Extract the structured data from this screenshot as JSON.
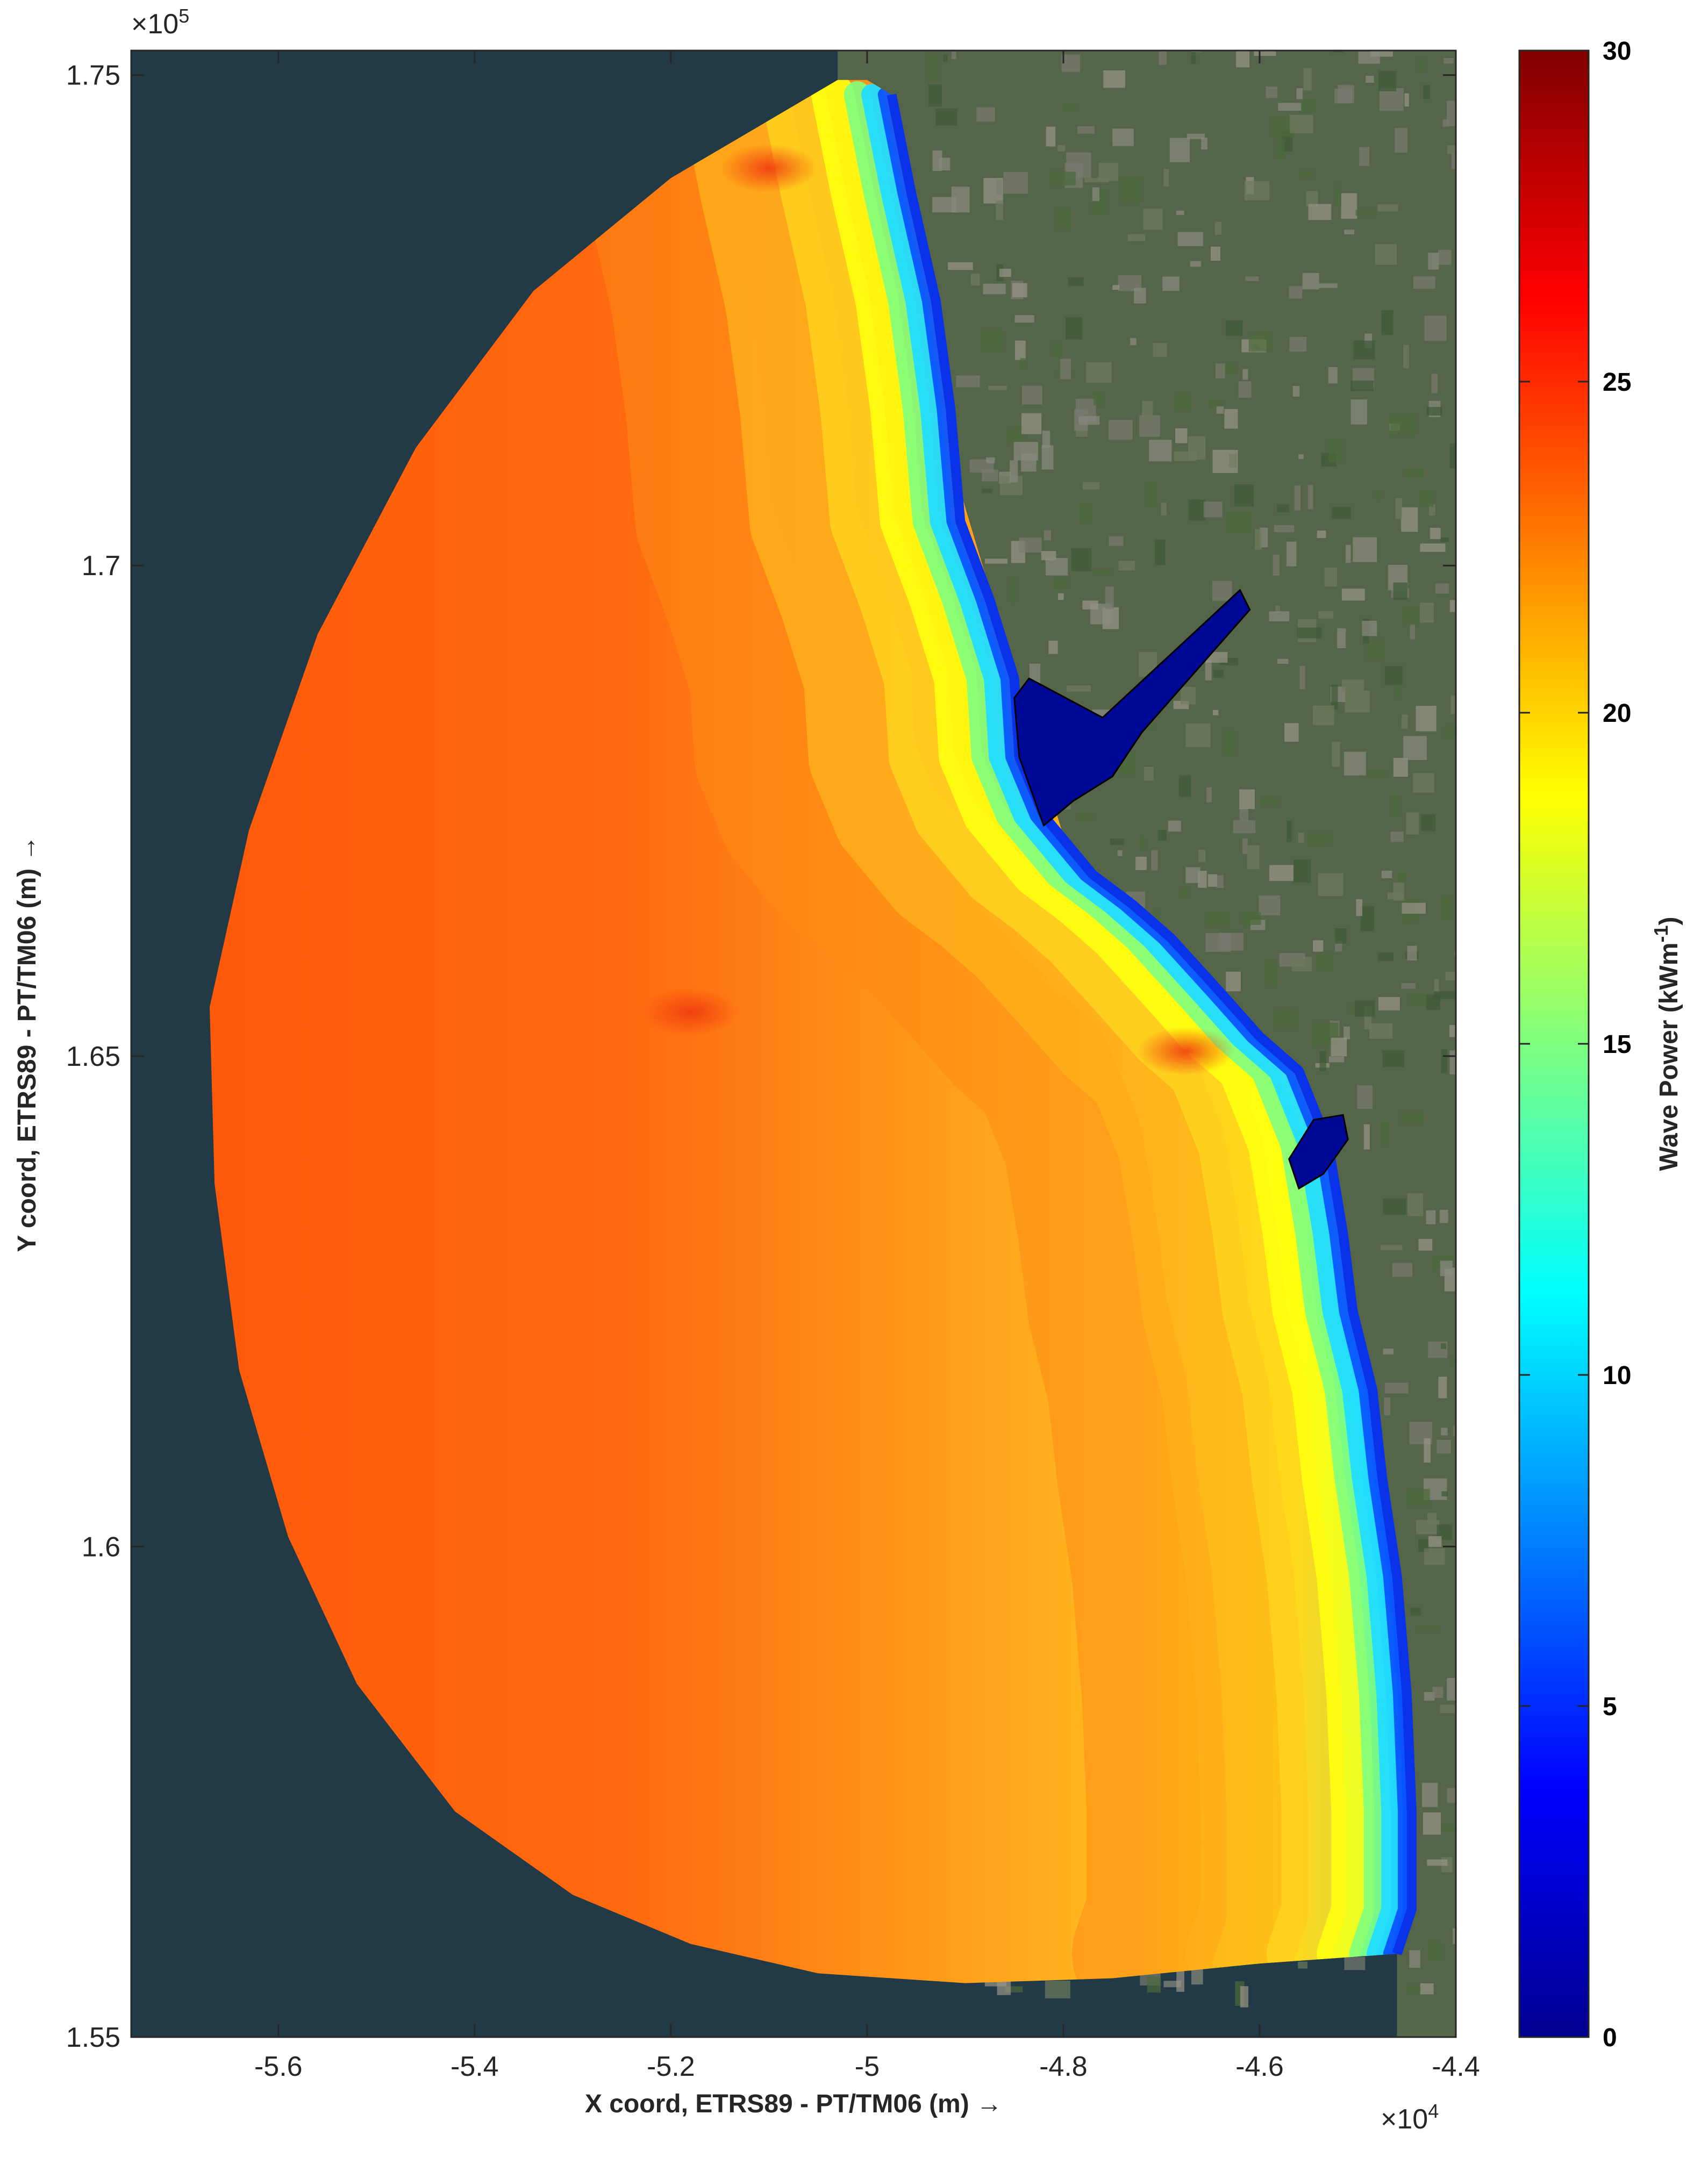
{
  "chart_data": {
    "type": "heatmap",
    "title": "",
    "xlabel": "X coord, ETRS89 - PT/TM06 (m) →",
    "ylabel": "Y coord, ETRS89 - PT/TM06 (m) →",
    "x_exponent_label": "×10",
    "x_exponent_power": "4",
    "y_exponent_label": "×10",
    "y_exponent_power": "5",
    "xlim": [
      -5.75,
      -4.4
    ],
    "ylim": [
      1.55,
      1.7525
    ],
    "xticks": [
      {
        "value": -5.6,
        "label": "-5.6"
      },
      {
        "value": -5.4,
        "label": "-5.4"
      },
      {
        "value": -5.2,
        "label": "-5.2"
      },
      {
        "value": -5.0,
        "label": "-5"
      },
      {
        "value": -4.8,
        "label": "-4.8"
      },
      {
        "value": -4.6,
        "label": "-4.6"
      },
      {
        "value": -4.4,
        "label": "-4.4"
      }
    ],
    "yticks": [
      {
        "value": 1.55,
        "label": "1.55"
      },
      {
        "value": 1.6,
        "label": "1.6"
      },
      {
        "value": 1.65,
        "label": "1.65"
      },
      {
        "value": 1.7,
        "label": "1.7"
      },
      {
        "value": 1.75,
        "label": "1.75"
      }
    ],
    "colorbar": {
      "label": "Wave Power (kWm",
      "label_sup": "-1",
      "label_close": ")",
      "colormap": "jet",
      "range": [
        0,
        30
      ],
      "ticks": [
        {
          "value": 0,
          "label": "0"
        },
        {
          "value": 5,
          "label": "5"
        },
        {
          "value": 10,
          "label": "10"
        },
        {
          "value": 15,
          "label": "15"
        },
        {
          "value": 20,
          "label": "20"
        },
        {
          "value": 25,
          "label": "25"
        },
        {
          "value": 30,
          "label": "30"
        }
      ]
    },
    "field_description": {
      "offshore_wave_power": 23,
      "midshelf_wave_power": 21,
      "nearshore_wave_power": 17,
      "surfzone_wave_power": 10,
      "harbour_wave_power": 0
    },
    "hotspots": [
      {
        "x": -5.18,
        "y": 1.6545,
        "value": 25
      },
      {
        "x": -4.675,
        "y": 1.6505,
        "value": 25
      },
      {
        "x": -5.1,
        "y": 1.7405,
        "value": 24
      }
    ],
    "domain_boundary": [
      [
        -5.03,
        1.7495
      ],
      [
        -5.2,
        1.7395
      ],
      [
        -5.34,
        1.728
      ],
      [
        -5.46,
        1.712
      ],
      [
        -5.56,
        1.693
      ],
      [
        -5.63,
        1.673
      ],
      [
        -5.67,
        1.655
      ],
      [
        -5.665,
        1.637
      ],
      [
        -5.64,
        1.618
      ],
      [
        -5.59,
        1.601
      ],
      [
        -5.52,
        1.586
      ],
      [
        -5.42,
        1.573
      ],
      [
        -5.3,
        1.5645
      ],
      [
        -5.18,
        1.5595
      ],
      [
        -5.05,
        1.5565
      ],
      [
        -4.9,
        1.5555
      ],
      [
        -4.75,
        1.556
      ],
      [
        -4.6,
        1.5575
      ],
      [
        -4.46,
        1.5585
      ]
    ],
    "coastline": [
      [
        -4.46,
        1.5585
      ],
      [
        -4.445,
        1.563
      ],
      [
        -4.445,
        1.573
      ],
      [
        -4.45,
        1.585
      ],
      [
        -4.46,
        1.597
      ],
      [
        -4.475,
        1.607
      ],
      [
        -4.485,
        1.616
      ],
      [
        -4.505,
        1.624
      ],
      [
        -4.515,
        1.632
      ],
      [
        -4.53,
        1.641
      ],
      [
        -4.56,
        1.6485
      ],
      [
        -4.6,
        1.652
      ],
      [
        -4.64,
        1.6565
      ],
      [
        -4.69,
        1.662
      ],
      [
        -4.73,
        1.6655
      ],
      [
        -4.77,
        1.6685
      ],
      [
        -4.82,
        1.6745
      ],
      [
        -4.845,
        1.6805
      ],
      [
        -4.85,
        1.6885
      ],
      [
        -4.875,
        1.6965
      ],
      [
        -4.905,
        1.7045
      ],
      [
        -4.915,
        1.716
      ],
      [
        -4.93,
        1.727
      ],
      [
        -4.955,
        1.738
      ],
      [
        -4.975,
        1.748
      ],
      [
        -5.0,
        1.7495
      ],
      [
        -5.03,
        1.7495
      ]
    ]
  }
}
